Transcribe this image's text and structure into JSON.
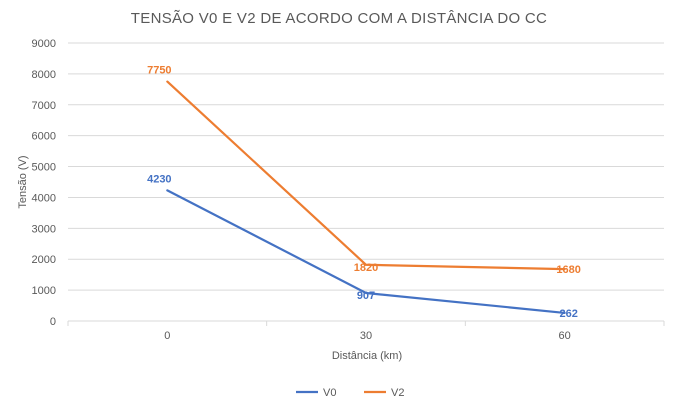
{
  "chart_data": {
    "type": "line",
    "title": "TENSÃO V0 E V2 DE ACORDO COM A DISTÂNCIA DO CC",
    "xlabel": "Distância (km)",
    "ylabel": "Tensão (V)",
    "categories": [
      "0",
      "30",
      "60"
    ],
    "ylim": [
      0,
      9000
    ],
    "yticks": [
      0,
      1000,
      2000,
      3000,
      4000,
      5000,
      6000,
      7000,
      8000,
      9000
    ],
    "grid": true,
    "legend_position": "bottom",
    "series": [
      {
        "name": "V0",
        "color": "#4472C4",
        "values": [
          4230,
          907,
          262
        ],
        "labels": [
          "4230",
          "907",
          "262"
        ]
      },
      {
        "name": "V2",
        "color": "#ED7D31",
        "values": [
          7750,
          1820,
          1680
        ],
        "labels": [
          "7750",
          "1820",
          "1680"
        ]
      }
    ]
  }
}
